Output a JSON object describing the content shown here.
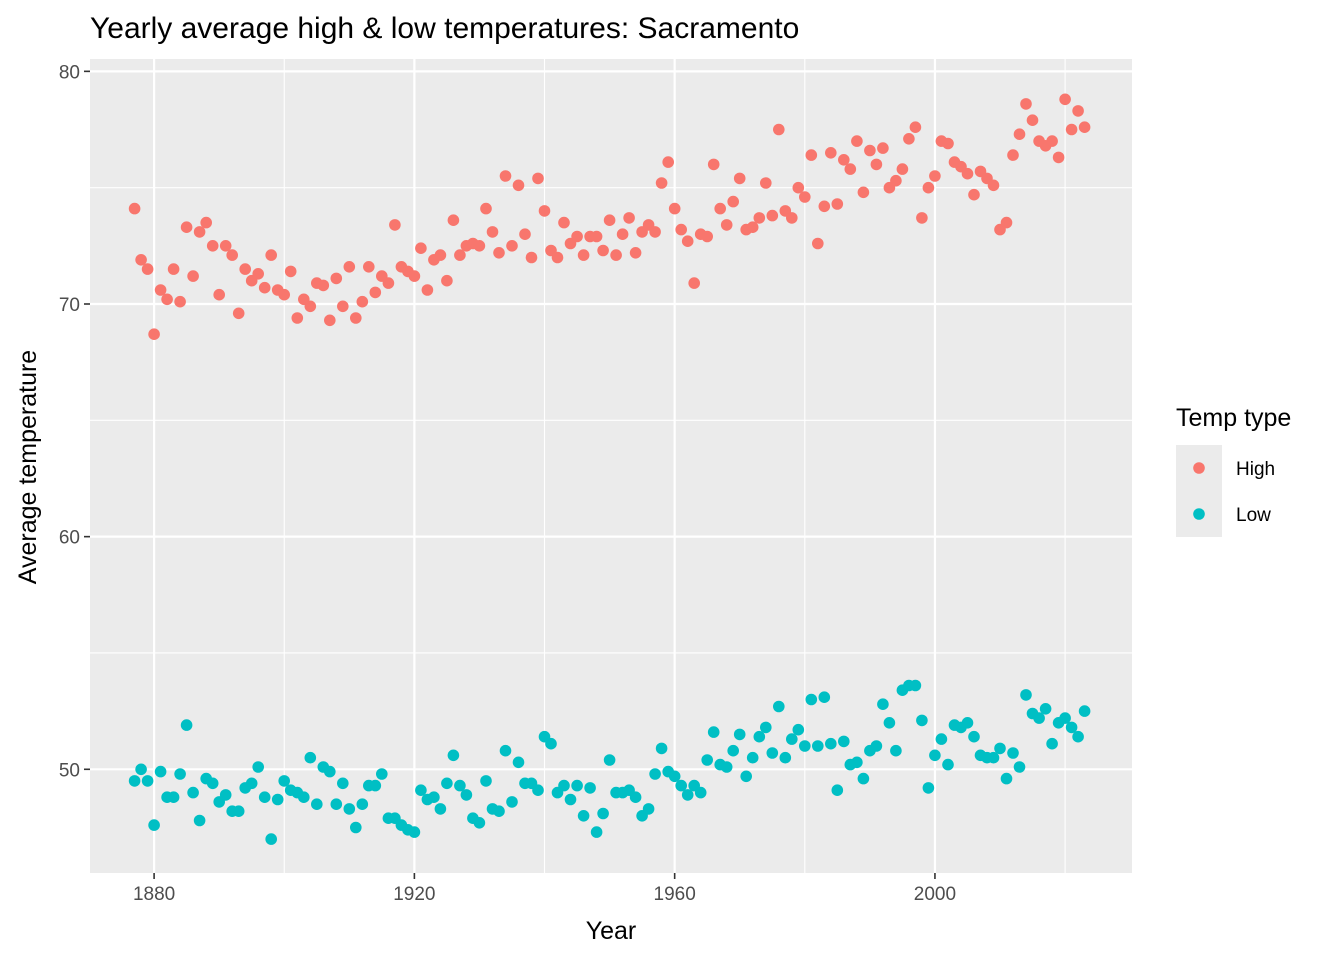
{
  "chart_data": {
    "type": "scatter",
    "title": "Yearly average high & low temperatures: Sacramento",
    "xlabel": "Year",
    "ylabel": "Average temperature",
    "xlim": [
      1870,
      2030
    ],
    "ylim": [
      45.5,
      81
    ],
    "xticks": [
      1880,
      1920,
      1960,
      2000
    ],
    "yticks": [
      50,
      60,
      70,
      80
    ],
    "grid": true,
    "legend": {
      "title": "Temp type",
      "position": "right"
    },
    "series": [
      {
        "name": "High",
        "color": "#F8766D",
        "x": [
          1877,
          1878,
          1879,
          1880,
          1881,
          1882,
          1883,
          1884,
          1885,
          1886,
          1887,
          1888,
          1889,
          1890,
          1891,
          1892,
          1893,
          1894,
          1895,
          1896,
          1897,
          1898,
          1899,
          1900,
          1901,
          1902,
          1903,
          1904,
          1905,
          1906,
          1907,
          1908,
          1909,
          1910,
          1911,
          1912,
          1913,
          1914,
          1915,
          1916,
          1917,
          1918,
          1919,
          1920,
          1921,
          1922,
          1923,
          1924,
          1925,
          1926,
          1927,
          1928,
          1929,
          1930,
          1931,
          1932,
          1933,
          1934,
          1935,
          1936,
          1937,
          1938,
          1939,
          1940,
          1941,
          1942,
          1943,
          1944,
          1945,
          1946,
          1947,
          1948,
          1949,
          1950,
          1951,
          1952,
          1953,
          1954,
          1955,
          1956,
          1957,
          1958,
          1959,
          1960,
          1961,
          1962,
          1963,
          1964,
          1965,
          1966,
          1967,
          1968,
          1969,
          1970,
          1971,
          1972,
          1973,
          1974,
          1975,
          1976,
          1977,
          1978,
          1979,
          1980,
          1981,
          1982,
          1983,
          1984,
          1985,
          1986,
          1987,
          1988,
          1989,
          1990,
          1991,
          1992,
          1993,
          1994,
          1995,
          1996,
          1997,
          1998,
          1999,
          2000,
          2001,
          2002,
          2003,
          2004,
          2005,
          2006,
          2007,
          2008,
          2009,
          2010,
          2011,
          2012,
          2013,
          2014,
          2015,
          2016,
          2017,
          2018,
          2019,
          2020,
          2021,
          2022,
          2023
        ],
        "y": [
          74.1,
          71.9,
          71.5,
          68.7,
          70.6,
          70.2,
          71.5,
          70.1,
          73.3,
          71.2,
          73.1,
          73.5,
          72.5,
          70.4,
          72.5,
          72.1,
          69.6,
          71.5,
          71.0,
          71.3,
          70.7,
          72.1,
          70.6,
          70.4,
          71.4,
          69.4,
          70.2,
          69.9,
          70.9,
          70.8,
          69.3,
          71.1,
          69.9,
          71.6,
          69.4,
          70.1,
          71.6,
          70.5,
          71.2,
          70.9,
          73.4,
          71.6,
          71.4,
          71.2,
          72.4,
          70.6,
          71.9,
          72.1,
          71.0,
          73.6,
          72.1,
          72.5,
          72.6,
          72.5,
          74.1,
          73.1,
          72.2,
          75.5,
          72.5,
          75.1,
          73.0,
          72.0,
          75.4,
          74.0,
          72.3,
          72.0,
          73.5,
          72.6,
          72.9,
          72.1,
          72.9,
          72.9,
          72.3,
          73.6,
          72.1,
          73.0,
          73.7,
          72.2,
          73.1,
          73.4,
          73.1,
          75.2,
          76.1,
          74.1,
          73.2,
          72.7,
          70.9,
          73.0,
          72.9,
          76.0,
          74.1,
          73.4,
          74.4,
          75.4,
          73.2,
          73.3,
          73.7,
          75.2,
          73.8,
          77.5,
          74.0,
          73.7,
          75.0,
          74.6,
          76.4,
          72.6,
          74.2,
          76.5,
          74.3,
          76.2,
          75.8,
          77.0,
          74.8,
          76.6,
          76.0,
          76.7,
          75.0,
          75.3,
          75.8,
          77.1,
          77.6,
          73.7,
          75.0,
          75.5,
          77.0,
          76.9,
          76.1,
          75.9,
          75.6,
          74.7,
          75.7,
          75.4,
          75.1,
          73.2,
          73.5,
          76.4,
          77.3,
          78.6,
          77.9,
          77.0,
          76.8,
          77.0,
          76.3,
          78.8,
          77.5,
          78.3,
          77.6
        ]
      },
      {
        "name": "Low",
        "color": "#00BFC4",
        "x": [
          1877,
          1878,
          1879,
          1880,
          1881,
          1882,
          1883,
          1884,
          1885,
          1886,
          1887,
          1888,
          1889,
          1890,
          1891,
          1892,
          1893,
          1894,
          1895,
          1896,
          1897,
          1898,
          1899,
          1900,
          1901,
          1902,
          1903,
          1904,
          1905,
          1906,
          1907,
          1908,
          1909,
          1910,
          1911,
          1912,
          1913,
          1914,
          1915,
          1916,
          1917,
          1918,
          1919,
          1920,
          1921,
          1922,
          1923,
          1924,
          1925,
          1926,
          1927,
          1928,
          1929,
          1930,
          1931,
          1932,
          1933,
          1934,
          1935,
          1936,
          1937,
          1938,
          1939,
          1940,
          1941,
          1942,
          1943,
          1944,
          1945,
          1946,
          1947,
          1948,
          1949,
          1950,
          1951,
          1952,
          1953,
          1954,
          1955,
          1956,
          1957,
          1958,
          1959,
          1960,
          1961,
          1962,
          1963,
          1964,
          1965,
          1966,
          1967,
          1968,
          1969,
          1970,
          1971,
          1972,
          1973,
          1974,
          1975,
          1976,
          1977,
          1978,
          1979,
          1980,
          1981,
          1982,
          1983,
          1984,
          1985,
          1986,
          1987,
          1988,
          1989,
          1990,
          1991,
          1992,
          1993,
          1994,
          1995,
          1996,
          1997,
          1998,
          1999,
          2000,
          2001,
          2002,
          2003,
          2004,
          2005,
          2006,
          2007,
          2008,
          2009,
          2010,
          2011,
          2012,
          2013,
          2014,
          2015,
          2016,
          2017,
          2018,
          2019,
          2020,
          2021,
          2022,
          2023
        ],
        "y": [
          49.5,
          50.0,
          49.5,
          47.6,
          49.9,
          48.8,
          48.8,
          49.8,
          51.9,
          49.0,
          47.8,
          49.6,
          49.4,
          48.6,
          48.9,
          48.2,
          48.2,
          49.2,
          49.4,
          50.1,
          48.8,
          47.0,
          48.7,
          49.5,
          49.1,
          49.0,
          48.8,
          50.5,
          48.5,
          50.1,
          49.9,
          48.5,
          49.4,
          48.3,
          47.5,
          48.5,
          49.3,
          49.3,
          49.8,
          47.9,
          47.9,
          47.6,
          47.4,
          47.3,
          49.1,
          48.7,
          48.8,
          48.3,
          49.4,
          50.6,
          49.3,
          48.9,
          47.9,
          47.7,
          49.5,
          48.3,
          48.2,
          50.8,
          48.6,
          50.3,
          49.4,
          49.4,
          49.1,
          51.4,
          51.1,
          49.0,
          49.3,
          48.7,
          49.3,
          48.0,
          49.2,
          47.3,
          48.1,
          50.4,
          49.0,
          49.0,
          49.1,
          48.8,
          48.0,
          48.3,
          49.8,
          50.9,
          49.9,
          49.7,
          49.3,
          48.9,
          49.3,
          49.0,
          50.4,
          51.6,
          50.2,
          50.1,
          50.8,
          51.5,
          49.7,
          50.5,
          51.4,
          51.8,
          50.7,
          52.7,
          50.5,
          51.3,
          51.7,
          51.0,
          53.0,
          51.0,
          53.1,
          51.1,
          49.1,
          51.2,
          50.2,
          50.3,
          49.6,
          50.8,
          51.0,
          52.8,
          52.0,
          50.8,
          53.4,
          53.6,
          53.6,
          52.1,
          49.2,
          50.6,
          51.3,
          50.2,
          51.9,
          51.8,
          52.0,
          51.4,
          50.6,
          50.5,
          50.5,
          50.9,
          49.6,
          50.7,
          50.1,
          53.2,
          52.4,
          52.2,
          52.6,
          51.1,
          52.0,
          52.2,
          51.8,
          51.4,
          52.5
        ]
      }
    ]
  }
}
